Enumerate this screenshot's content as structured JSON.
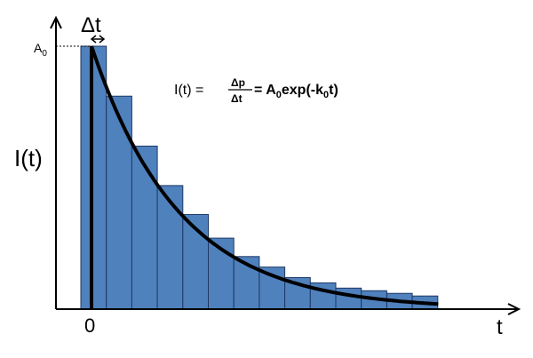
{
  "chart_data": {
    "type": "bar",
    "values": [
      1.0,
      0.81,
      0.62,
      0.47,
      0.36,
      0.27,
      0.2,
      0.16,
      0.12,
      0.1,
      0.08,
      0.07,
      0.06,
      0.05
    ],
    "curve": {
      "A0": 1.0,
      "k0": 0.29
    },
    "ylim": [
      0,
      1.03
    ],
    "grid": false,
    "labels": {
      "ylabel": "I(t)",
      "xlabel": "t",
      "origin": "0",
      "delta_t": "Δt",
      "A0_mark": "A",
      "A0_sub": "0"
    },
    "equation": {
      "lhs": "I(t) = ",
      "numerator": "Δp",
      "denominator": "Δt",
      "eq": " = A",
      "sub1": "0",
      "mid": "exp(-k",
      "sub2": "0",
      "end": "t)"
    },
    "colors": {
      "bar": "#4f81bd",
      "bar_edge": "#1f3864",
      "curve": "#000000"
    }
  }
}
